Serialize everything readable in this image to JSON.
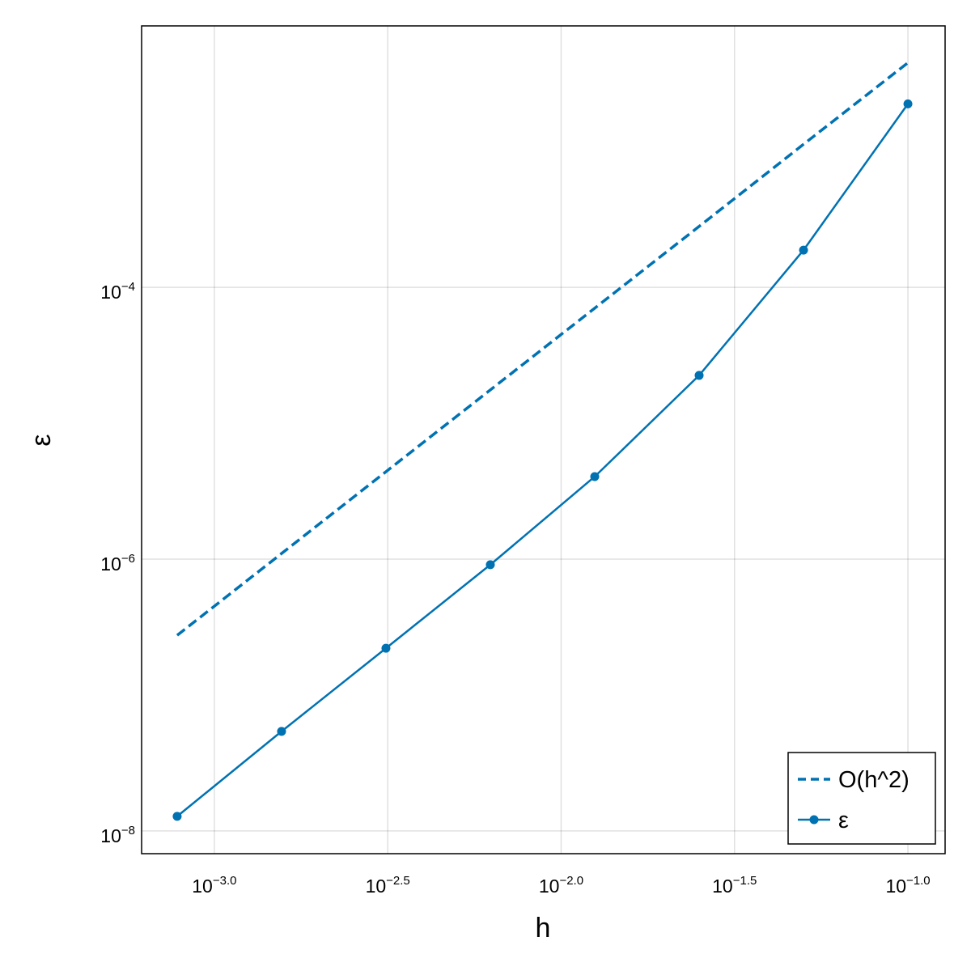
{
  "chart_data": {
    "type": "line",
    "x_label": "h",
    "y_label": "ε",
    "x_log": true,
    "y_log": true,
    "grid": true,
    "legend": "bottom-right",
    "x": [
      0.00078125,
      0.0015625,
      0.003125,
      0.00625,
      0.0125,
      0.025,
      0.05,
      0.1
    ],
    "series": [
      {
        "name": "O(h^2)",
        "color": "#0072b2",
        "dashed": true,
        "markers": false,
        "values": [
          2.75e-07,
          1.1e-06,
          4.4e-06,
          1.76e-05,
          7.03e-05,
          0.000281,
          0.00113,
          0.0045
        ]
      },
      {
        "name": "ε",
        "color": "#0072b2",
        "dashed": false,
        "markers": true,
        "values": [
          1.28e-08,
          5.4e-08,
          2.21e-07,
          9.1e-07,
          4.05e-06,
          2.25e-05,
          0.000188,
          0.00224
        ]
      }
    ],
    "xlim": [
      0.000617,
      0.128
    ],
    "ylim": [
      6.8e-09,
      0.0084
    ],
    "xticks": [
      {
        "value": 0.001,
        "label": "10",
        "exponent": "−3.0"
      },
      {
        "value": 0.00316228,
        "label": "10",
        "exponent": "−2.5"
      },
      {
        "value": 0.01,
        "label": "10",
        "exponent": "−2.0"
      },
      {
        "value": 0.0316228,
        "label": "10",
        "exponent": "−1.5"
      },
      {
        "value": 0.1,
        "label": "10",
        "exponent": "−1.0"
      }
    ],
    "yticks": [
      {
        "value": 0.0001,
        "label": "10",
        "exponent": "−4"
      },
      {
        "value": 1e-06,
        "label": "10",
        "exponent": "−6"
      },
      {
        "value": 1e-08,
        "label": "10",
        "exponent": "−8"
      }
    ]
  }
}
